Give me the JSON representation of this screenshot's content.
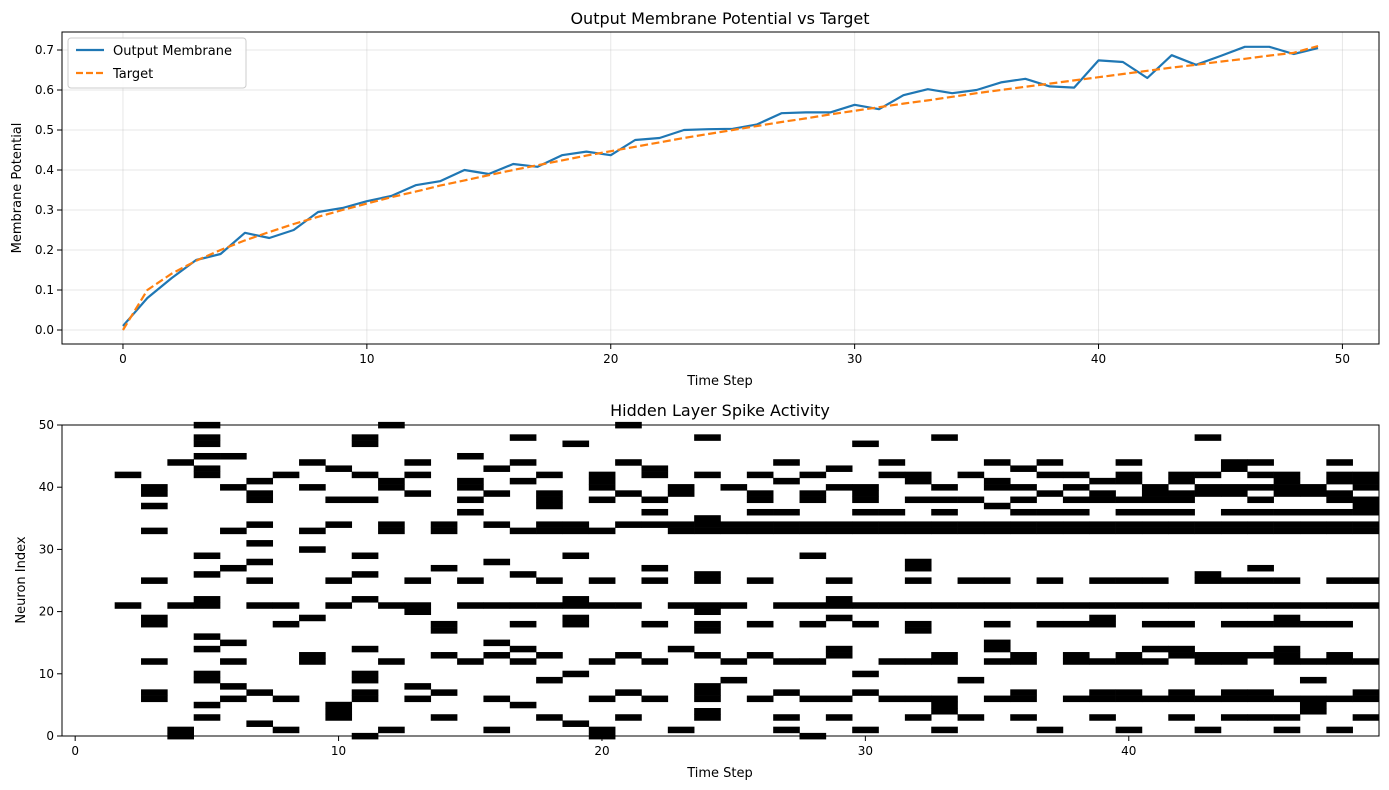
{
  "chart_data": [
    {
      "type": "line",
      "title": "Output Membrane Potential vs Target",
      "xlabel": "Time Step",
      "ylabel": "Membrane Potential",
      "xlim": [
        -2.5,
        51.5
      ],
      "ylim": [
        -0.035,
        0.745
      ],
      "xticks": [
        0,
        10,
        20,
        30,
        40,
        50
      ],
      "yticks": [
        0.0,
        0.1,
        0.2,
        0.3,
        0.4,
        0.5,
        0.6,
        0.7
      ],
      "ytick_labels": [
        "0.0",
        "0.1",
        "0.2",
        "0.3",
        "0.4",
        "0.5",
        "0.6",
        "0.7"
      ],
      "grid": true,
      "legend": "top-left",
      "x": [
        0,
        1,
        2,
        3,
        4,
        5,
        6,
        7,
        8,
        9,
        10,
        11,
        12,
        13,
        14,
        15,
        16,
        17,
        18,
        19,
        20,
        21,
        22,
        23,
        24,
        25,
        26,
        27,
        28,
        29,
        30,
        31,
        32,
        33,
        34,
        35,
        36,
        37,
        38,
        39,
        40,
        41,
        42,
        43,
        44,
        45,
        46,
        47,
        48,
        49
      ],
      "series": [
        {
          "name": "Output Membrane",
          "color": "#1f77b4",
          "style": "solid",
          "values": [
            0.01,
            0.08,
            0.13,
            0.175,
            0.19,
            0.243,
            0.23,
            0.25,
            0.295,
            0.305,
            0.322,
            0.335,
            0.362,
            0.372,
            0.4,
            0.39,
            0.415,
            0.408,
            0.437,
            0.446,
            0.437,
            0.475,
            0.48,
            0.5,
            0.502,
            0.503,
            0.514,
            0.542,
            0.544,
            0.544,
            0.563,
            0.552,
            0.587,
            0.602,
            0.592,
            0.6,
            0.619,
            0.628,
            0.609,
            0.606,
            0.674,
            0.67,
            0.63,
            0.687,
            0.663,
            0.685,
            0.708,
            0.708,
            0.69,
            0.705
          ]
        },
        {
          "name": "Target",
          "color": "#ff7f0e",
          "style": "dashed",
          "values": [
            0.0,
            0.1,
            0.141,
            0.173,
            0.2,
            0.224,
            0.245,
            0.265,
            0.283,
            0.3,
            0.316,
            0.332,
            0.346,
            0.361,
            0.374,
            0.387,
            0.4,
            0.412,
            0.424,
            0.436,
            0.447,
            0.458,
            0.469,
            0.48,
            0.49,
            0.5,
            0.51,
            0.52,
            0.529,
            0.539,
            0.548,
            0.557,
            0.566,
            0.574,
            0.583,
            0.592,
            0.6,
            0.608,
            0.616,
            0.624,
            0.632,
            0.64,
            0.648,
            0.656,
            0.663,
            0.671,
            0.678,
            0.686,
            0.693,
            0.71
          ]
        }
      ]
    },
    {
      "type": "heatmap",
      "title": "Hidden Layer Spike Activity",
      "xlabel": "Time Step",
      "ylabel": "Neuron Index",
      "xlim": [
        -0.5,
        49.5
      ],
      "ylim": [
        0,
        50
      ],
      "xticks": [
        0,
        10,
        20,
        30,
        40
      ],
      "yticks": [
        0,
        10,
        20,
        30,
        40,
        50
      ],
      "grid": false,
      "colormap": "binary",
      "n_neurons": 50,
      "n_steps": 50,
      "spikes": [
        [],
        [],
        [
          42,
          21
        ],
        [
          40,
          39,
          37,
          33,
          25,
          19,
          18,
          12,
          7,
          6
        ],
        [
          44,
          21,
          1,
          0
        ],
        [
          50,
          48,
          47,
          45,
          43,
          42,
          29,
          26,
          22,
          21,
          16,
          14,
          10,
          9,
          5,
          3
        ],
        [
          45,
          40,
          33,
          27,
          15,
          12,
          8,
          6
        ],
        [
          41,
          39,
          38,
          34,
          31,
          28,
          25,
          21,
          7,
          2
        ],
        [
          42,
          21,
          18,
          6,
          1
        ],
        [
          44,
          40,
          33,
          30,
          19,
          13,
          12
        ],
        [
          43,
          38,
          34,
          25,
          21,
          5,
          4,
          3
        ],
        [
          48,
          47,
          42,
          38,
          29,
          26,
          22,
          14,
          10,
          9,
          7,
          6,
          0
        ],
        [
          50,
          41,
          40,
          34,
          33,
          21,
          12,
          1
        ],
        [
          44,
          42,
          39,
          25,
          21,
          20,
          8,
          6
        ],
        [
          34,
          33,
          27,
          18,
          17,
          13,
          7,
          3
        ],
        [
          45,
          41,
          40,
          38,
          36,
          25,
          21,
          12
        ],
        [
          43,
          39,
          34,
          28,
          21,
          15,
          13,
          6,
          1
        ],
        [
          48,
          44,
          41,
          33,
          26,
          21,
          18,
          14,
          12,
          5
        ],
        [
          42,
          39,
          38,
          37,
          34,
          33,
          25,
          21,
          13,
          9,
          3
        ],
        [
          47,
          34,
          33,
          29,
          22,
          21,
          19,
          18,
          10,
          2
        ],
        [
          42,
          41,
          40,
          38,
          33,
          25,
          21,
          12,
          6,
          1,
          0
        ],
        [
          50,
          44,
          39,
          34,
          21,
          13,
          7,
          3
        ],
        [
          43,
          42,
          38,
          36,
          34,
          27,
          25,
          18,
          12,
          6
        ],
        [
          40,
          39,
          34,
          33,
          21,
          14,
          1
        ],
        [
          48,
          42,
          35,
          34,
          33,
          26,
          25,
          21,
          20,
          18,
          17,
          13,
          8,
          7,
          6,
          4,
          3
        ],
        [
          40,
          34,
          33,
          21,
          12,
          9
        ],
        [
          42,
          39,
          38,
          36,
          34,
          33,
          25,
          18,
          13,
          6
        ],
        [
          44,
          41,
          36,
          34,
          33,
          21,
          12,
          7,
          3,
          1
        ],
        [
          42,
          39,
          38,
          34,
          33,
          29,
          21,
          18,
          12,
          6,
          0
        ],
        [
          43,
          40,
          34,
          33,
          25,
          22,
          21,
          19,
          14,
          13,
          6,
          3
        ],
        [
          47,
          40,
          39,
          38,
          36,
          34,
          33,
          21,
          18,
          10,
          7,
          1
        ],
        [
          44,
          42,
          36,
          34,
          33,
          21,
          12,
          6
        ],
        [
          42,
          41,
          38,
          34,
          33,
          28,
          27,
          25,
          21,
          18,
          17,
          12,
          6,
          3
        ],
        [
          48,
          40,
          38,
          36,
          34,
          33,
          21,
          13,
          12,
          6,
          5,
          4,
          1
        ],
        [
          42,
          38,
          34,
          33,
          25,
          21,
          9,
          3
        ],
        [
          44,
          41,
          40,
          37,
          34,
          33,
          25,
          21,
          18,
          15,
          14,
          12,
          6
        ],
        [
          43,
          40,
          38,
          36,
          34,
          33,
          21,
          13,
          12,
          7,
          6,
          3
        ],
        [
          44,
          42,
          39,
          36,
          34,
          33,
          25,
          21,
          18,
          1
        ],
        [
          42,
          40,
          38,
          36,
          34,
          33,
          21,
          18,
          13,
          12,
          6
        ],
        [
          41,
          39,
          38,
          34,
          33,
          25,
          21,
          19,
          18,
          12,
          7,
          6,
          3
        ],
        [
          44,
          42,
          41,
          38,
          36,
          34,
          33,
          25,
          21,
          13,
          12,
          7,
          6,
          1
        ],
        [
          40,
          39,
          38,
          36,
          34,
          33,
          25,
          21,
          18,
          14,
          12,
          6
        ],
        [
          42,
          41,
          39,
          38,
          36,
          34,
          33,
          21,
          18,
          14,
          13,
          7,
          6,
          3
        ],
        [
          48,
          42,
          40,
          39,
          34,
          33,
          26,
          25,
          21,
          13,
          12,
          6,
          1
        ],
        [
          44,
          43,
          40,
          39,
          36,
          34,
          33,
          25,
          21,
          18,
          13,
          12,
          7,
          6,
          3
        ],
        [
          44,
          42,
          40,
          38,
          36,
          34,
          33,
          27,
          25,
          21,
          18,
          13,
          7,
          6,
          3
        ],
        [
          42,
          41,
          40,
          39,
          36,
          34,
          33,
          25,
          21,
          19,
          18,
          14,
          13,
          12,
          6,
          3,
          1
        ],
        [
          40,
          39,
          36,
          34,
          33,
          21,
          18,
          12,
          9,
          6,
          5,
          4
        ],
        [
          44,
          42,
          41,
          39,
          38,
          36,
          34,
          33,
          25,
          21,
          18,
          13,
          12,
          6,
          1
        ],
        [
          42,
          41,
          40,
          38,
          37,
          36,
          34,
          33,
          25,
          21,
          12,
          7,
          6,
          3
        ]
      ]
    }
  ]
}
